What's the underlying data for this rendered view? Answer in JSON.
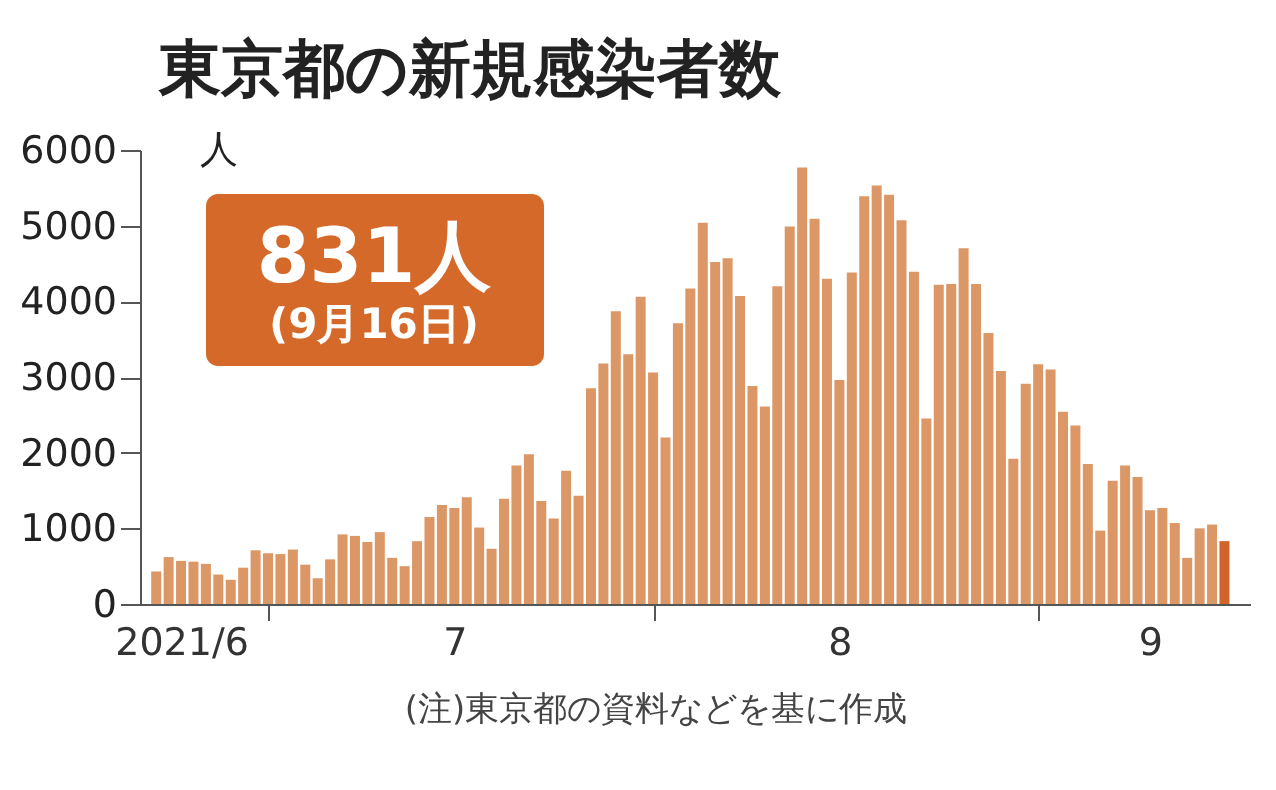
{
  "chart_data": {
    "type": "bar",
    "title": "東京都の新規感染者数",
    "ylabel": "人",
    "x": [
      "2021-06-22",
      "2021-06-23",
      "2021-06-24",
      "2021-06-25",
      "2021-06-26",
      "2021-06-27",
      "2021-06-28",
      "2021-06-29",
      "2021-06-30",
      "2021-07-01",
      "2021-07-02",
      "2021-07-03",
      "2021-07-04",
      "2021-07-05",
      "2021-07-06",
      "2021-07-07",
      "2021-07-08",
      "2021-07-09",
      "2021-07-10",
      "2021-07-11",
      "2021-07-12",
      "2021-07-13",
      "2021-07-14",
      "2021-07-15",
      "2021-07-16",
      "2021-07-17",
      "2021-07-18",
      "2021-07-19",
      "2021-07-20",
      "2021-07-21",
      "2021-07-22",
      "2021-07-23",
      "2021-07-24",
      "2021-07-25",
      "2021-07-26",
      "2021-07-27",
      "2021-07-28",
      "2021-07-29",
      "2021-07-30",
      "2021-07-31",
      "2021-08-01",
      "2021-08-02",
      "2021-08-03",
      "2021-08-04",
      "2021-08-05",
      "2021-08-06",
      "2021-08-07",
      "2021-08-08",
      "2021-08-09",
      "2021-08-10",
      "2021-08-11",
      "2021-08-12",
      "2021-08-13",
      "2021-08-14",
      "2021-08-15",
      "2021-08-16",
      "2021-08-17",
      "2021-08-18",
      "2021-08-19",
      "2021-08-20",
      "2021-08-21",
      "2021-08-22",
      "2021-08-23",
      "2021-08-24",
      "2021-08-25",
      "2021-08-26",
      "2021-08-27",
      "2021-08-28",
      "2021-08-29",
      "2021-08-30",
      "2021-08-31",
      "2021-09-01",
      "2021-09-02",
      "2021-09-03",
      "2021-09-04",
      "2021-09-05",
      "2021-09-06",
      "2021-09-07",
      "2021-09-08",
      "2021-09-09",
      "2021-09-10",
      "2021-09-11",
      "2021-09-12",
      "2021-09-13",
      "2021-09-14",
      "2021-09-15",
      "2021-09-16"
    ],
    "values": [
      430,
      620,
      570,
      560,
      530,
      390,
      320,
      480,
      710,
      670,
      660,
      720,
      520,
      340,
      590,
      920,
      900,
      820,
      950,
      610,
      500,
      830,
      1150,
      1310,
      1270,
      1410,
      1010,
      730,
      1390,
      1830,
      1980,
      1360,
      1130,
      1760,
      1430,
      2850,
      3180,
      3870,
      3300,
      4060,
      3060,
      2200,
      3710,
      4170,
      5040,
      4520,
      4570,
      4070,
      2880,
      2610,
      4200,
      4990,
      5770,
      5090,
      4300,
      2960,
      4380,
      5390,
      5530,
      5410,
      5070,
      4390,
      2450,
      4220,
      4230,
      4700,
      4230,
      3580,
      3080,
      1920,
      2910,
      3170,
      3100,
      2540,
      2360,
      1850,
      970,
      1630,
      1830,
      1680,
      1240,
      1270,
      1070,
      610,
      1000,
      1050,
      831
    ],
    "colors": [
      "#dc9767",
      "#dc9767",
      "#dc9767",
      "#dc9767",
      "#dc9767",
      "#dc9767",
      "#dc9767",
      "#dc9767",
      "#dc9767",
      "#dc9767",
      "#dc9767",
      "#dc9767",
      "#dc9767",
      "#dc9767",
      "#dc9767",
      "#dc9767",
      "#dc9767",
      "#dc9767",
      "#dc9767",
      "#dc9767",
      "#dc9767",
      "#dc9767",
      "#dc9767",
      "#dc9767",
      "#dc9767",
      "#dc9767",
      "#dc9767",
      "#dc9767",
      "#dc9767",
      "#dc9767",
      "#dc9767",
      "#dc9767",
      "#dc9767",
      "#dc9767",
      "#dc9767",
      "#dc9767",
      "#dc9767",
      "#dc9767",
      "#dc9767",
      "#dc9767",
      "#dc9767",
      "#dc9767",
      "#dc9767",
      "#dc9767",
      "#dc9767",
      "#dc9767",
      "#dc9767",
      "#dc9767",
      "#dc9767",
      "#dc9767",
      "#dc9767",
      "#dc9767",
      "#dc9767",
      "#dc9767",
      "#dc9767",
      "#dc9767",
      "#dc9767",
      "#dc9767",
      "#dc9767",
      "#dc9767",
      "#dc9767",
      "#dc9767",
      "#dc9767",
      "#dc9767",
      "#dc9767",
      "#dc9767",
      "#dc9767",
      "#dc9767",
      "#dc9767",
      "#dc9767",
      "#dc9767",
      "#dc9767",
      "#dc9767",
      "#dc9767",
      "#dc9767",
      "#dc9767",
      "#dc9767",
      "#dc9767",
      "#dc9767",
      "#dc9767",
      "#dc9767",
      "#dc9767",
      "#dc9767",
      "#dc9767",
      "#dc9767",
      "#dc9767",
      "#d2642a"
    ],
    "xlim": [
      "2021-06-21T12:00",
      "2021-09-17T06:00"
    ],
    "xticks": [
      {
        "value": "2021-06-24",
        "label": "2021/6"
      },
      {
        "value": "2021-07-01",
        "label": null
      },
      {
        "value": "2021-07-16",
        "label": "7"
      },
      {
        "value": "2021-08-01",
        "label": null
      },
      {
        "value": "2021-08-16",
        "label": "8"
      },
      {
        "value": "2021-09-01",
        "label": null
      },
      {
        "value": "2021-09-10",
        "label": "9"
      }
    ],
    "ylim": [
      0,
      6000
    ],
    "yticks": [
      0,
      1000,
      2000,
      3000,
      4000,
      5000,
      6000
    ],
    "grid": false,
    "annotations": [
      "831人",
      "(9月16日)",
      "(注)東京都の資料などを基に作成"
    ]
  }
}
